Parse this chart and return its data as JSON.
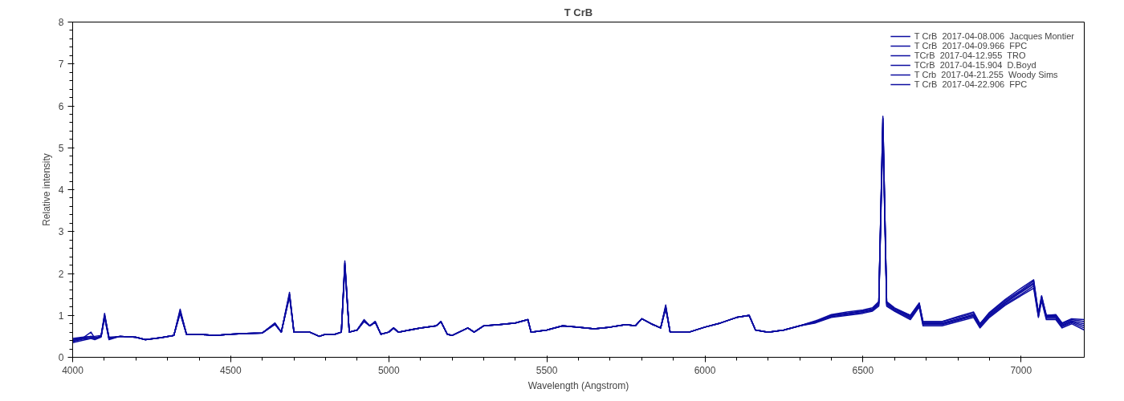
{
  "chart_data": {
    "type": "line",
    "title": "T CrB",
    "xlabel": "Wavelength (Angstrom)",
    "ylabel": "Relative intensity",
    "xlim": [
      4000,
      7200
    ],
    "xticks": [
      4000,
      4500,
      5000,
      5500,
      6000,
      6500,
      7000
    ],
    "ylim": [
      0,
      8
    ],
    "yticks": [
      0,
      1,
      2,
      3,
      4,
      5,
      6,
      7,
      8
    ],
    "grid": false,
    "legend": "top right",
    "line_style": "solid",
    "marker": "none",
    "x": [
      4000,
      4030,
      4058,
      4070,
      4090,
      4101,
      4115,
      4150,
      4200,
      4230,
      4280,
      4320,
      4340,
      4360,
      4400,
      4450,
      4500,
      4550,
      4600,
      4640,
      4660,
      4686,
      4700,
      4750,
      4780,
      4800,
      4830,
      4850,
      4861,
      4875,
      4900,
      4922,
      4940,
      4957,
      4975,
      5000,
      5015,
      5030,
      5100,
      5150,
      5165,
      5185,
      5200,
      5250,
      5270,
      5300,
      5350,
      5400,
      5440,
      5450,
      5500,
      5550,
      5600,
      5650,
      5700,
      5750,
      5780,
      5800,
      5830,
      5860,
      5876,
      5890,
      5950,
      6000,
      6050,
      6100,
      6140,
      6160,
      6200,
      6250,
      6300,
      6350,
      6400,
      6450,
      6500,
      6530,
      6550,
      6563,
      6575,
      6600,
      6650,
      6678,
      6690,
      6750,
      6800,
      6850,
      6870,
      6900,
      6950,
      7000,
      7040,
      7055,
      7065,
      7080,
      7110,
      7130,
      7160,
      7200
    ],
    "series": [
      {
        "name": "T CrB  2017-04-08.006  Jacques Montier",
        "color": "#0c0ca0",
        "values": [
          0.4,
          0.45,
          0.6,
          0.45,
          0.5,
          1.0,
          0.45,
          0.5,
          0.48,
          0.42,
          0.47,
          0.52,
          1.1,
          0.55,
          0.55,
          0.52,
          0.55,
          0.57,
          0.58,
          0.8,
          0.6,
          1.5,
          0.6,
          0.6,
          0.5,
          0.55,
          0.55,
          0.6,
          2.25,
          0.6,
          0.65,
          0.88,
          0.75,
          0.85,
          0.55,
          0.6,
          0.7,
          0.6,
          0.7,
          0.75,
          0.85,
          0.55,
          0.52,
          0.7,
          0.6,
          0.75,
          0.78,
          0.82,
          0.9,
          0.6,
          0.65,
          0.75,
          0.72,
          0.68,
          0.72,
          0.78,
          0.75,
          0.92,
          0.8,
          0.7,
          1.2,
          0.6,
          0.6,
          0.72,
          0.82,
          0.95,
          1.0,
          0.65,
          0.6,
          0.65,
          0.75,
          0.85,
          1.0,
          1.05,
          1.1,
          1.15,
          1.3,
          5.7,
          1.3,
          1.15,
          1.0,
          1.3,
          0.85,
          0.85,
          0.95,
          1.05,
          0.8,
          1.05,
          1.35,
          1.6,
          1.82,
          1.05,
          1.45,
          1.0,
          1.0,
          0.8,
          0.9,
          0.85
        ]
      },
      {
        "name": "T CrB  2017-04-09.966  FPC",
        "color": "#0c0ca0",
        "values": [
          0.38,
          0.43,
          0.45,
          0.45,
          0.5,
          0.95,
          0.45,
          0.5,
          0.48,
          0.42,
          0.47,
          0.52,
          1.05,
          0.55,
          0.55,
          0.52,
          0.55,
          0.57,
          0.58,
          0.8,
          0.6,
          1.45,
          0.6,
          0.6,
          0.5,
          0.55,
          0.55,
          0.6,
          2.2,
          0.6,
          0.65,
          0.88,
          0.75,
          0.85,
          0.55,
          0.6,
          0.7,
          0.6,
          0.7,
          0.75,
          0.85,
          0.55,
          0.52,
          0.7,
          0.6,
          0.75,
          0.78,
          0.82,
          0.9,
          0.6,
          0.65,
          0.75,
          0.72,
          0.68,
          0.72,
          0.78,
          0.75,
          0.92,
          0.8,
          0.7,
          1.2,
          0.6,
          0.6,
          0.72,
          0.82,
          0.95,
          1.0,
          0.65,
          0.6,
          0.65,
          0.75,
          0.85,
          1.0,
          1.05,
          1.1,
          1.15,
          1.28,
          5.6,
          1.28,
          1.15,
          0.97,
          1.27,
          0.82,
          0.82,
          0.92,
          1.02,
          0.77,
          1.02,
          1.32,
          1.57,
          1.78,
          1.02,
          1.42,
          0.97,
          0.97,
          0.77,
          0.87,
          0.8
        ]
      },
      {
        "name": "TCrB  2017-04-12.955  TRO",
        "color": "#0c0ca0",
        "values": [
          0.42,
          0.47,
          0.5,
          0.47,
          0.5,
          1.0,
          0.45,
          0.5,
          0.48,
          0.42,
          0.47,
          0.52,
          1.1,
          0.55,
          0.55,
          0.52,
          0.55,
          0.57,
          0.58,
          0.8,
          0.6,
          1.5,
          0.6,
          0.6,
          0.5,
          0.55,
          0.55,
          0.6,
          2.25,
          0.6,
          0.65,
          0.88,
          0.75,
          0.85,
          0.55,
          0.6,
          0.7,
          0.6,
          0.7,
          0.75,
          0.85,
          0.55,
          0.52,
          0.7,
          0.6,
          0.75,
          0.78,
          0.82,
          0.9,
          0.6,
          0.65,
          0.75,
          0.72,
          0.68,
          0.72,
          0.78,
          0.75,
          0.92,
          0.8,
          0.7,
          1.2,
          0.6,
          0.6,
          0.72,
          0.82,
          0.95,
          1.0,
          0.65,
          0.6,
          0.65,
          0.75,
          0.85,
          1.0,
          1.05,
          1.1,
          1.15,
          1.3,
          5.7,
          1.3,
          1.15,
          0.95,
          1.25,
          0.8,
          0.8,
          0.9,
          1.0,
          0.75,
          1.0,
          1.3,
          1.55,
          1.75,
          1.0,
          1.4,
          0.95,
          0.95,
          0.75,
          0.85,
          0.75
        ]
      },
      {
        "name": "TCrB  2017-04-15.904  D.Boyd",
        "color": "#0c0ca0",
        "values": [
          0.35,
          0.4,
          0.45,
          0.42,
          0.48,
          0.95,
          0.42,
          0.5,
          0.48,
          0.42,
          0.47,
          0.52,
          1.05,
          0.55,
          0.55,
          0.52,
          0.55,
          0.57,
          0.58,
          0.78,
          0.6,
          1.45,
          0.6,
          0.6,
          0.5,
          0.55,
          0.55,
          0.6,
          2.15,
          0.6,
          0.65,
          0.85,
          0.75,
          0.83,
          0.55,
          0.6,
          0.7,
          0.6,
          0.7,
          0.75,
          0.85,
          0.55,
          0.52,
          0.7,
          0.6,
          0.75,
          0.78,
          0.82,
          0.9,
          0.6,
          0.65,
          0.75,
          0.72,
          0.68,
          0.72,
          0.78,
          0.75,
          0.92,
          0.8,
          0.7,
          1.15,
          0.6,
          0.6,
          0.72,
          0.82,
          0.95,
          1.0,
          0.65,
          0.6,
          0.65,
          0.75,
          0.83,
          0.97,
          1.02,
          1.07,
          1.12,
          1.25,
          5.5,
          1.25,
          1.12,
          0.93,
          1.23,
          0.78,
          0.78,
          0.88,
          0.98,
          0.73,
          0.98,
          1.27,
          1.5,
          1.7,
          0.98,
          1.38,
          0.93,
          0.93,
          0.73,
          0.83,
          0.7
        ]
      },
      {
        "name": "T Crb  2017-04-21.255  Woody Sims",
        "color": "#0c0ca0",
        "values": [
          0.45,
          0.48,
          0.5,
          0.5,
          0.52,
          1.0,
          0.48,
          0.5,
          0.48,
          0.42,
          0.47,
          0.52,
          1.1,
          0.55,
          0.55,
          0.52,
          0.55,
          0.57,
          0.58,
          0.8,
          0.6,
          1.5,
          0.6,
          0.6,
          0.5,
          0.55,
          0.55,
          0.6,
          2.2,
          0.6,
          0.65,
          0.88,
          0.75,
          0.85,
          0.55,
          0.6,
          0.7,
          0.6,
          0.7,
          0.75,
          0.85,
          0.55,
          0.52,
          0.7,
          0.6,
          0.75,
          0.78,
          0.82,
          0.9,
          0.6,
          0.65,
          0.75,
          0.72,
          0.68,
          0.72,
          0.78,
          0.75,
          0.92,
          0.8,
          0.7,
          1.2,
          0.6,
          0.6,
          0.72,
          0.82,
          0.95,
          1.0,
          0.65,
          0.6,
          0.65,
          0.75,
          0.82,
          0.95,
          1.0,
          1.05,
          1.1,
          1.22,
          5.4,
          1.22,
          1.1,
          0.9,
          1.2,
          0.75,
          0.75,
          0.85,
          0.95,
          0.7,
          0.95,
          1.24,
          1.47,
          1.65,
          0.95,
          1.35,
          0.9,
          0.9,
          0.7,
          0.8,
          0.65
        ]
      },
      {
        "name": "T CrB  2017-04-22.906  FPC",
        "color": "#0c0ca0",
        "values": [
          0.4,
          0.45,
          0.48,
          0.45,
          0.5,
          1.05,
          0.45,
          0.5,
          0.48,
          0.42,
          0.47,
          0.52,
          1.15,
          0.55,
          0.55,
          0.52,
          0.55,
          0.57,
          0.58,
          0.82,
          0.6,
          1.55,
          0.6,
          0.6,
          0.5,
          0.55,
          0.55,
          0.6,
          2.3,
          0.6,
          0.65,
          0.9,
          0.75,
          0.85,
          0.55,
          0.6,
          0.7,
          0.6,
          0.7,
          0.75,
          0.85,
          0.55,
          0.52,
          0.7,
          0.6,
          0.75,
          0.78,
          0.82,
          0.9,
          0.6,
          0.65,
          0.75,
          0.72,
          0.68,
          0.72,
          0.78,
          0.75,
          0.92,
          0.8,
          0.7,
          1.25,
          0.6,
          0.6,
          0.72,
          0.82,
          0.95,
          1.0,
          0.65,
          0.6,
          0.65,
          0.75,
          0.87,
          1.02,
          1.08,
          1.13,
          1.18,
          1.33,
          5.75,
          1.33,
          1.18,
          1.0,
          1.28,
          0.85,
          0.85,
          0.97,
          1.08,
          0.8,
          1.07,
          1.38,
          1.65,
          1.85,
          1.05,
          1.47,
          1.0,
          1.02,
          0.82,
          0.92,
          0.9
        ]
      }
    ]
  }
}
